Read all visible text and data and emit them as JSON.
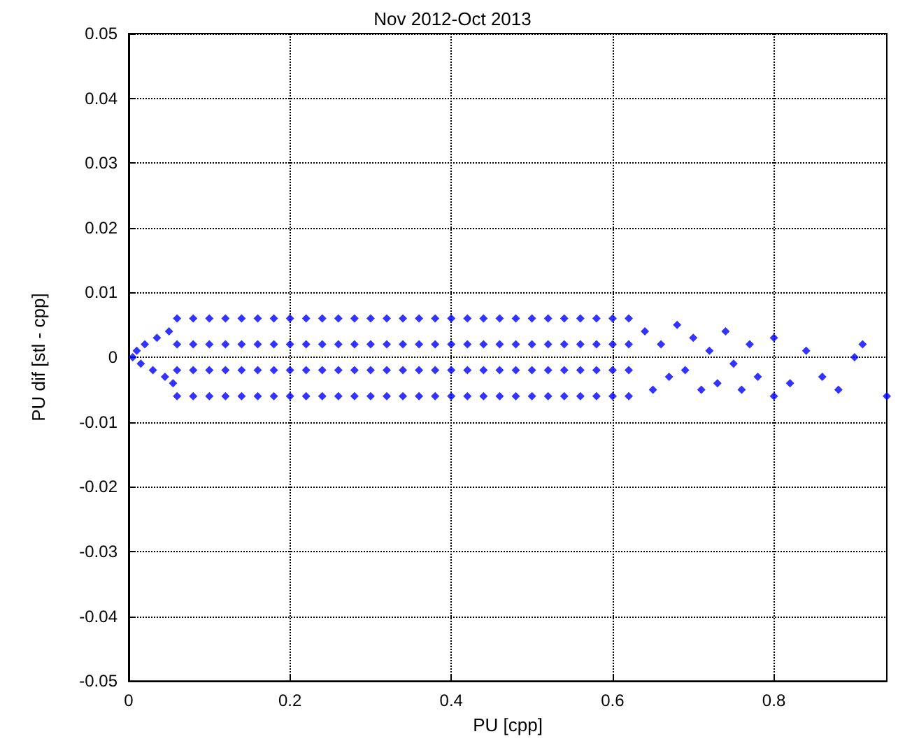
{
  "chart_data": {
    "type": "scatter",
    "title": "Nov 2012-Oct 2013",
    "xlabel": "PU [cpp]",
    "ylabel": "PU dif [stl - cpp]",
    "xlim": [
      0,
      0.94
    ],
    "ylim": [
      -0.05,
      0.05
    ],
    "xticks": [
      0,
      0.2,
      0.4,
      0.6,
      0.8
    ],
    "yticks": [
      -0.05,
      -0.04,
      -0.03,
      -0.02,
      -0.01,
      0,
      0.01,
      0.02,
      0.03,
      0.04,
      0.05
    ],
    "grid": true,
    "marker": "diamond",
    "series": [
      {
        "color": "#0000ff",
        "x": [
          0.005,
          0.01,
          0.015,
          0.02,
          0.03,
          0.035,
          0.045,
          0.05,
          0.055,
          0.06,
          0.06,
          0.06,
          0.06,
          0.08,
          0.08,
          0.08,
          0.08,
          0.1,
          0.1,
          0.1,
          0.1,
          0.12,
          0.12,
          0.12,
          0.12,
          0.14,
          0.14,
          0.14,
          0.14,
          0.16,
          0.16,
          0.16,
          0.16,
          0.18,
          0.18,
          0.18,
          0.18,
          0.2,
          0.2,
          0.2,
          0.2,
          0.22,
          0.22,
          0.22,
          0.22,
          0.24,
          0.24,
          0.24,
          0.24,
          0.26,
          0.26,
          0.26,
          0.26,
          0.28,
          0.28,
          0.28,
          0.28,
          0.3,
          0.3,
          0.3,
          0.3,
          0.32,
          0.32,
          0.32,
          0.32,
          0.34,
          0.34,
          0.34,
          0.34,
          0.36,
          0.36,
          0.36,
          0.36,
          0.38,
          0.38,
          0.38,
          0.38,
          0.4,
          0.4,
          0.4,
          0.4,
          0.42,
          0.42,
          0.42,
          0.42,
          0.44,
          0.44,
          0.44,
          0.44,
          0.46,
          0.46,
          0.46,
          0.46,
          0.48,
          0.48,
          0.48,
          0.48,
          0.5,
          0.5,
          0.5,
          0.5,
          0.52,
          0.52,
          0.52,
          0.52,
          0.54,
          0.54,
          0.54,
          0.54,
          0.56,
          0.56,
          0.56,
          0.56,
          0.58,
          0.58,
          0.58,
          0.58,
          0.6,
          0.6,
          0.6,
          0.6,
          0.62,
          0.62,
          0.62,
          0.62,
          0.64,
          0.65,
          0.66,
          0.67,
          0.68,
          0.69,
          0.7,
          0.71,
          0.72,
          0.73,
          0.74,
          0.75,
          0.76,
          0.77,
          0.78,
          0.8,
          0.8,
          0.82,
          0.84,
          0.86,
          0.88,
          0.9,
          0.91,
          0.94
        ],
        "values": [
          0,
          0.001,
          -0.001,
          0.002,
          -0.002,
          0.003,
          -0.003,
          0.004,
          -0.004,
          -0.006,
          -0.002,
          0.002,
          0.006,
          -0.006,
          -0.002,
          0.002,
          0.006,
          -0.006,
          -0.002,
          0.002,
          0.006,
          -0.006,
          -0.002,
          0.002,
          0.006,
          -0.006,
          -0.002,
          0.002,
          0.006,
          -0.006,
          -0.002,
          0.002,
          0.006,
          -0.006,
          -0.002,
          0.002,
          0.006,
          -0.006,
          -0.002,
          0.002,
          0.006,
          -0.006,
          -0.002,
          0.002,
          0.006,
          -0.006,
          -0.002,
          0.002,
          0.006,
          -0.006,
          -0.002,
          0.002,
          0.006,
          -0.006,
          -0.002,
          0.002,
          0.006,
          -0.006,
          -0.002,
          0.002,
          0.006,
          -0.006,
          -0.002,
          0.002,
          0.006,
          -0.006,
          -0.002,
          0.002,
          0.006,
          -0.006,
          -0.002,
          0.002,
          0.006,
          -0.006,
          -0.002,
          0.002,
          0.006,
          -0.006,
          -0.002,
          0.002,
          0.006,
          -0.006,
          -0.002,
          0.002,
          0.006,
          -0.006,
          -0.002,
          0.002,
          0.006,
          -0.006,
          -0.002,
          0.002,
          0.006,
          -0.006,
          -0.002,
          0.002,
          0.006,
          -0.006,
          -0.002,
          0.002,
          0.006,
          -0.006,
          -0.002,
          0.002,
          0.006,
          -0.006,
          -0.002,
          0.002,
          0.006,
          -0.006,
          -0.002,
          0.002,
          0.006,
          -0.006,
          -0.002,
          0.002,
          0.006,
          -0.006,
          -0.002,
          0.002,
          0.006,
          -0.006,
          -0.002,
          0.002,
          0.006,
          0.004,
          -0.005,
          0.002,
          -0.003,
          0.005,
          -0.002,
          0.003,
          -0.005,
          0.001,
          -0.004,
          0.004,
          -0.001,
          -0.005,
          0.002,
          -0.003,
          -0.006,
          0.003,
          -0.004,
          0.001,
          -0.003,
          -0.005,
          0,
          0.002,
          -0.006
        ]
      }
    ]
  }
}
